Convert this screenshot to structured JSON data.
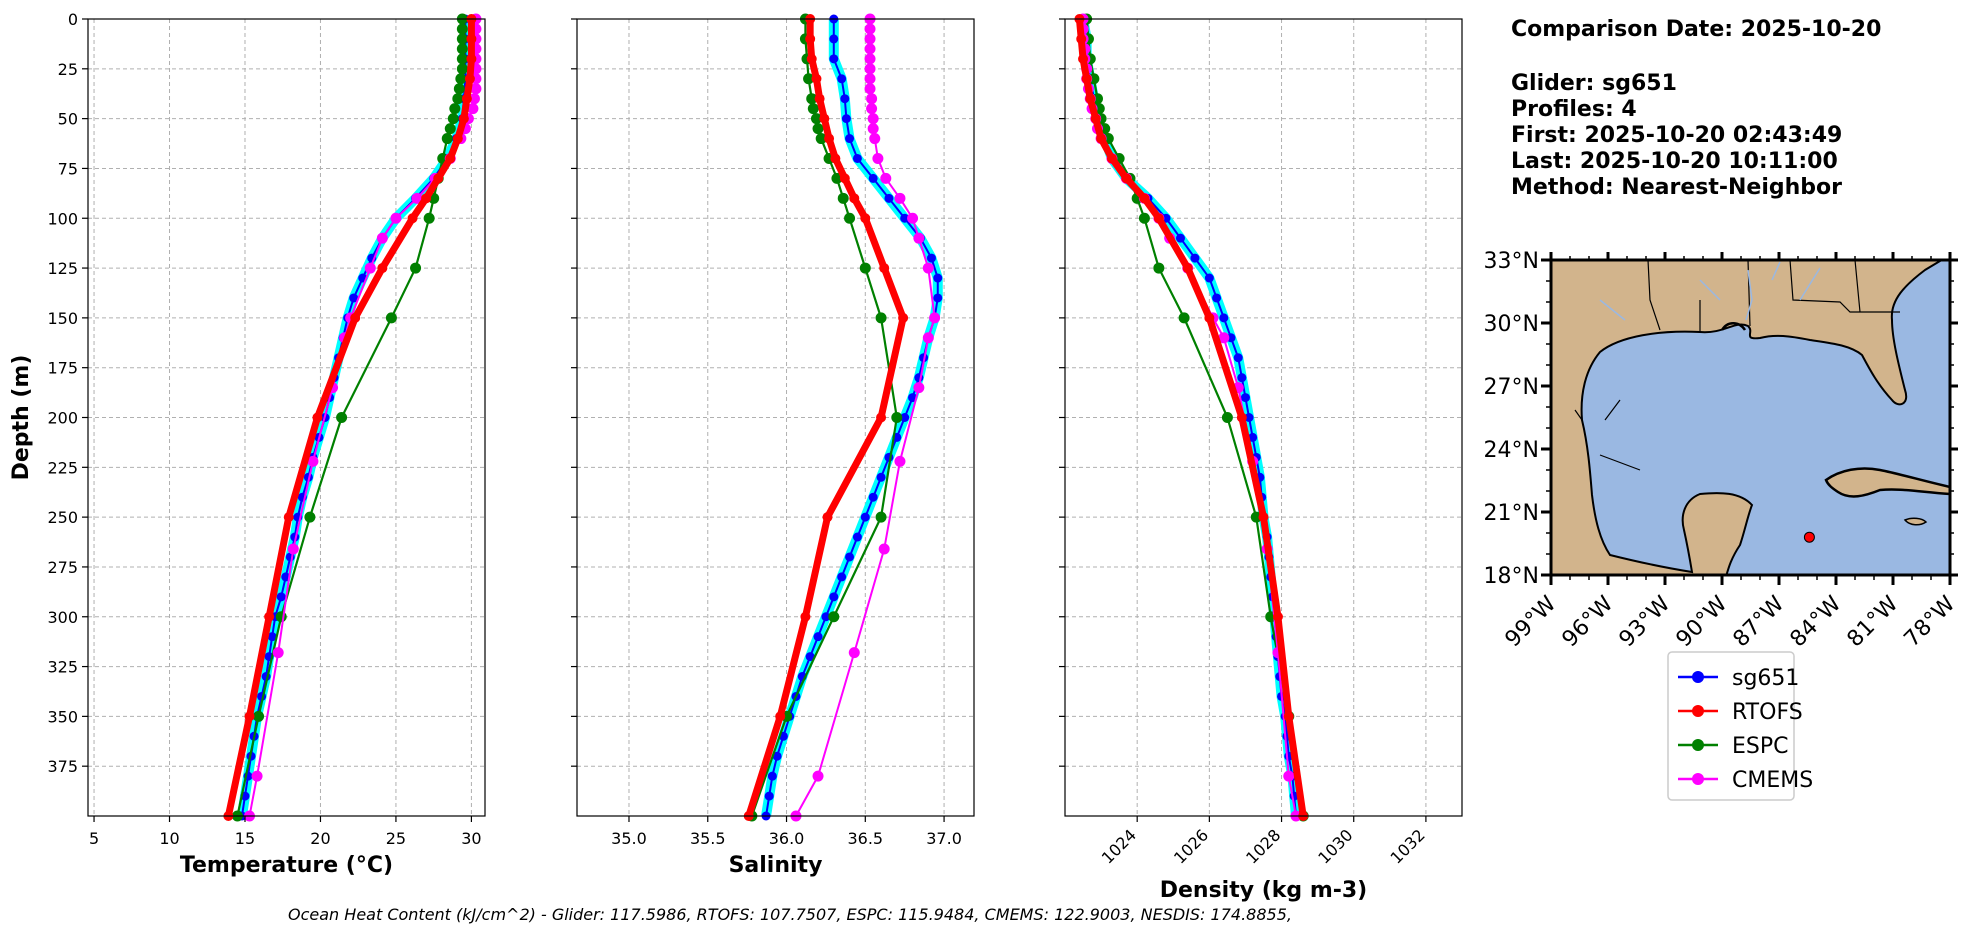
{
  "info": {
    "comparison_date": "Comparison Date: 2025-10-20",
    "glider": "Glider: sg651",
    "profiles": "Profiles: 4",
    "first": "First: 2025-10-20 02:43:49",
    "last": "Last: 2025-10-20 10:11:00",
    "method": "Method: Nearest-Neighbor"
  },
  "footer": "Ocean Heat Content (kJ/cm^2) - Glider: 117.5986,  RTOFS: 107.7507,  ESPC: 115.9484,  CMEMS: 122.9003,  NESDIS: 174.8855,",
  "colors": {
    "sg651": "#0000ff",
    "sg651_halo": "#00ffff",
    "RTOFS": "#ff0000",
    "ESPC": "#008000",
    "CMEMS": "#ff00ff",
    "land": "#d2b48c",
    "ocean": "#9ab8e2"
  },
  "legend": [
    "sg651",
    "RTOFS",
    "ESPC",
    "CMEMS"
  ],
  "chart_data": [
    {
      "type": "line",
      "panel": "temperature",
      "xlabel": "Temperature (°C)",
      "ylabel": "Depth (m)",
      "xlim": [
        4.6,
        30.9
      ],
      "ylim": [
        400,
        0
      ],
      "xticks": [
        5,
        10,
        15,
        20,
        25,
        30
      ],
      "yticks": [
        0,
        25,
        50,
        75,
        100,
        125,
        150,
        175,
        200,
        225,
        250,
        275,
        300,
        325,
        350,
        375
      ],
      "grid": true,
      "series": [
        {
          "name": "sg651",
          "depth": [
            0,
            10,
            20,
            30,
            40,
            50,
            60,
            70,
            80,
            90,
            100,
            110,
            120,
            130,
            140,
            150,
            160,
            170,
            180,
            190,
            200,
            210,
            220,
            230,
            240,
            250,
            260,
            270,
            280,
            290,
            300,
            310,
            320,
            330,
            340,
            350,
            360,
            370,
            380,
            390,
            400
          ],
          "values": [
            29.6,
            29.6,
            29.6,
            29.6,
            29.5,
            29.4,
            29.0,
            28.4,
            27.5,
            26.3,
            25.0,
            24.1,
            23.4,
            22.8,
            22.2,
            21.8,
            21.5,
            21.2,
            20.9,
            20.6,
            20.3,
            19.9,
            19.5,
            19.2,
            18.8,
            18.5,
            18.3,
            18.0,
            17.7,
            17.4,
            17.0,
            16.8,
            16.6,
            16.4,
            16.1,
            15.8,
            15.6,
            15.4,
            15.2,
            15.0,
            14.8
          ]
        },
        {
          "name": "RTOFS",
          "depth": [
            0,
            10,
            20,
            30,
            40,
            50,
            60,
            70,
            80,
            90,
            100,
            125,
            150,
            200,
            250,
            300,
            350,
            400
          ],
          "values": [
            30.0,
            30.0,
            30.0,
            29.9,
            29.7,
            29.5,
            29.1,
            28.6,
            27.8,
            27.0,
            26.1,
            24.1,
            22.3,
            19.8,
            17.9,
            16.6,
            15.3,
            13.9
          ]
        },
        {
          "name": "ESPC",
          "depth": [
            0,
            5,
            10,
            15,
            20,
            25,
            30,
            35,
            40,
            45,
            50,
            55,
            60,
            70,
            80,
            90,
            100,
            125,
            150,
            200,
            250,
            300,
            350,
            400
          ],
          "values": [
            29.4,
            29.4,
            29.4,
            29.4,
            29.4,
            29.4,
            29.3,
            29.2,
            29.1,
            28.9,
            28.8,
            28.6,
            28.4,
            28.1,
            27.8,
            27.5,
            27.2,
            26.3,
            24.7,
            21.4,
            19.3,
            17.4,
            15.9,
            14.5
          ]
        },
        {
          "name": "CMEMS",
          "depth": [
            0,
            5,
            10,
            15,
            20,
            25,
            30,
            35,
            40,
            45,
            50,
            55,
            60,
            70,
            80,
            90,
            100,
            110,
            125,
            150,
            160,
            185,
            222,
            266,
            318,
            380,
            400
          ],
          "values": [
            30.3,
            30.3,
            30.3,
            30.3,
            30.3,
            30.3,
            30.3,
            30.3,
            30.2,
            30.1,
            29.8,
            29.6,
            29.3,
            28.6,
            27.6,
            26.4,
            25.0,
            24.1,
            23.3,
            22.0,
            21.6,
            20.8,
            19.5,
            18.2,
            17.2,
            15.8,
            15.3
          ]
        }
      ]
    },
    {
      "type": "line",
      "panel": "salinity",
      "xlabel": "Salinity",
      "ylim": [
        400,
        0
      ],
      "xlim": [
        34.67,
        37.19
      ],
      "xticks": [
        35.0,
        35.5,
        36.0,
        36.5,
        37.0
      ],
      "grid": true,
      "series": [
        {
          "name": "sg651",
          "depth": [
            0,
            10,
            20,
            30,
            40,
            50,
            60,
            70,
            80,
            90,
            100,
            110,
            120,
            130,
            140,
            150,
            160,
            170,
            180,
            190,
            200,
            210,
            220,
            230,
            240,
            250,
            260,
            270,
            280,
            290,
            300,
            310,
            320,
            330,
            340,
            350,
            360,
            370,
            380,
            390,
            400
          ],
          "values": [
            36.3,
            36.3,
            36.3,
            36.35,
            36.37,
            36.38,
            36.4,
            36.45,
            36.55,
            36.65,
            36.75,
            36.85,
            36.92,
            36.96,
            36.96,
            36.94,
            36.9,
            36.87,
            36.84,
            36.8,
            36.75,
            36.7,
            36.65,
            36.6,
            36.55,
            36.5,
            36.45,
            36.4,
            36.35,
            36.3,
            36.25,
            36.2,
            36.15,
            36.1,
            36.06,
            36.02,
            35.98,
            35.94,
            35.91,
            35.89,
            35.87
          ]
        },
        {
          "name": "RTOFS",
          "depth": [
            0,
            10,
            20,
            30,
            40,
            50,
            60,
            70,
            80,
            90,
            100,
            125,
            150,
            200,
            250,
            300,
            350,
            400
          ],
          "values": [
            36.15,
            36.15,
            36.16,
            36.19,
            36.21,
            36.24,
            36.27,
            36.31,
            36.37,
            36.43,
            36.5,
            36.62,
            36.74,
            36.6,
            36.26,
            36.12,
            35.96,
            35.76
          ]
        },
        {
          "name": "ESPC",
          "depth": [
            0,
            10,
            20,
            30,
            40,
            45,
            50,
            55,
            60,
            70,
            80,
            90,
            100,
            125,
            150,
            200,
            250,
            300,
            350,
            400
          ],
          "values": [
            36.12,
            36.12,
            36.13,
            36.14,
            36.16,
            36.17,
            36.19,
            36.2,
            36.22,
            36.27,
            36.32,
            36.36,
            36.4,
            36.5,
            36.6,
            36.7,
            36.6,
            36.3,
            36.0,
            35.78
          ]
        },
        {
          "name": "CMEMS",
          "depth": [
            0,
            5,
            10,
            15,
            20,
            25,
            30,
            35,
            40,
            45,
            50,
            55,
            60,
            70,
            80,
            90,
            100,
            110,
            125,
            150,
            160,
            185,
            222,
            266,
            318,
            380,
            400
          ],
          "values": [
            36.53,
            36.53,
            36.53,
            36.53,
            36.53,
            36.53,
            36.53,
            36.53,
            36.54,
            36.54,
            36.55,
            36.55,
            36.56,
            36.58,
            36.63,
            36.72,
            36.8,
            36.84,
            36.9,
            36.94,
            36.9,
            36.84,
            36.72,
            36.62,
            36.43,
            36.2,
            36.06
          ]
        }
      ]
    },
    {
      "type": "line",
      "panel": "density",
      "xlabel": "Density (kg m-3)",
      "ylim": [
        400,
        0
      ],
      "xlim": [
        1022.0,
        1033.0
      ],
      "xticks": [
        1024,
        1026,
        1028,
        1030,
        1032
      ],
      "grid": true,
      "series": [
        {
          "name": "sg651",
          "depth": [
            0,
            10,
            20,
            30,
            40,
            50,
            60,
            70,
            80,
            90,
            100,
            110,
            120,
            130,
            140,
            150,
            160,
            170,
            180,
            190,
            200,
            210,
            220,
            230,
            240,
            250,
            260,
            270,
            280,
            290,
            300,
            310,
            320,
            330,
            340,
            350,
            360,
            370,
            380,
            390,
            400
          ],
          "values": [
            1022.5,
            1022.6,
            1022.6,
            1022.7,
            1022.8,
            1022.9,
            1023.1,
            1023.3,
            1023.7,
            1024.3,
            1024.8,
            1025.2,
            1025.6,
            1026.0,
            1026.2,
            1026.4,
            1026.6,
            1026.8,
            1026.9,
            1027.0,
            1027.1,
            1027.2,
            1027.3,
            1027.4,
            1027.45,
            1027.5,
            1027.6,
            1027.65,
            1027.7,
            1027.75,
            1027.8,
            1027.85,
            1027.9,
            1027.95,
            1028.0,
            1028.1,
            1028.15,
            1028.2,
            1028.3,
            1028.35,
            1028.4
          ]
        },
        {
          "name": "RTOFS",
          "depth": [
            0,
            10,
            20,
            30,
            40,
            50,
            60,
            70,
            80,
            90,
            100,
            125,
            150,
            200,
            250,
            300,
            350,
            400
          ],
          "values": [
            1022.4,
            1022.45,
            1022.5,
            1022.6,
            1022.7,
            1022.85,
            1023.0,
            1023.3,
            1023.7,
            1024.2,
            1024.6,
            1025.4,
            1026.0,
            1026.9,
            1027.5,
            1027.9,
            1028.2,
            1028.6
          ]
        },
        {
          "name": "ESPC",
          "depth": [
            0,
            10,
            20,
            30,
            40,
            45,
            50,
            55,
            60,
            70,
            80,
            90,
            100,
            125,
            150,
            200,
            250,
            300,
            350,
            400
          ],
          "values": [
            1022.6,
            1022.65,
            1022.7,
            1022.8,
            1022.9,
            1022.95,
            1023.0,
            1023.1,
            1023.2,
            1023.5,
            1023.8,
            1024.0,
            1024.2,
            1024.6,
            1025.3,
            1026.5,
            1027.3,
            1027.7,
            1028.2,
            1028.6
          ]
        },
        {
          "name": "CMEMS",
          "depth": [
            0,
            5,
            10,
            15,
            20,
            25,
            30,
            35,
            40,
            45,
            50,
            55,
            60,
            70,
            80,
            90,
            100,
            110,
            125,
            150,
            160,
            185,
            222,
            266,
            318,
            380,
            400
          ],
          "values": [
            1022.5,
            1022.5,
            1022.5,
            1022.55,
            1022.55,
            1022.6,
            1022.6,
            1022.65,
            1022.7,
            1022.75,
            1022.85,
            1022.9,
            1023.0,
            1023.3,
            1023.7,
            1024.2,
            1024.6,
            1024.9,
            1025.4,
            1026.1,
            1026.4,
            1026.8,
            1027.2,
            1027.6,
            1027.9,
            1028.2,
            1028.4
          ]
        }
      ]
    },
    {
      "type": "map",
      "panel": "location",
      "lon_range": [
        -99,
        -78
      ],
      "lat_range": [
        18,
        33
      ],
      "xtick_labels": [
        "99°W",
        "96°W",
        "93°W",
        "90°W",
        "87°W",
        "84°W",
        "81°W",
        "78°W"
      ],
      "ytick_labels": [
        "33°N",
        "30°N",
        "27°N",
        "24°N",
        "21°N",
        "18°N"
      ],
      "marker": {
        "lon": -85.4,
        "lat": 19.8
      }
    }
  ]
}
